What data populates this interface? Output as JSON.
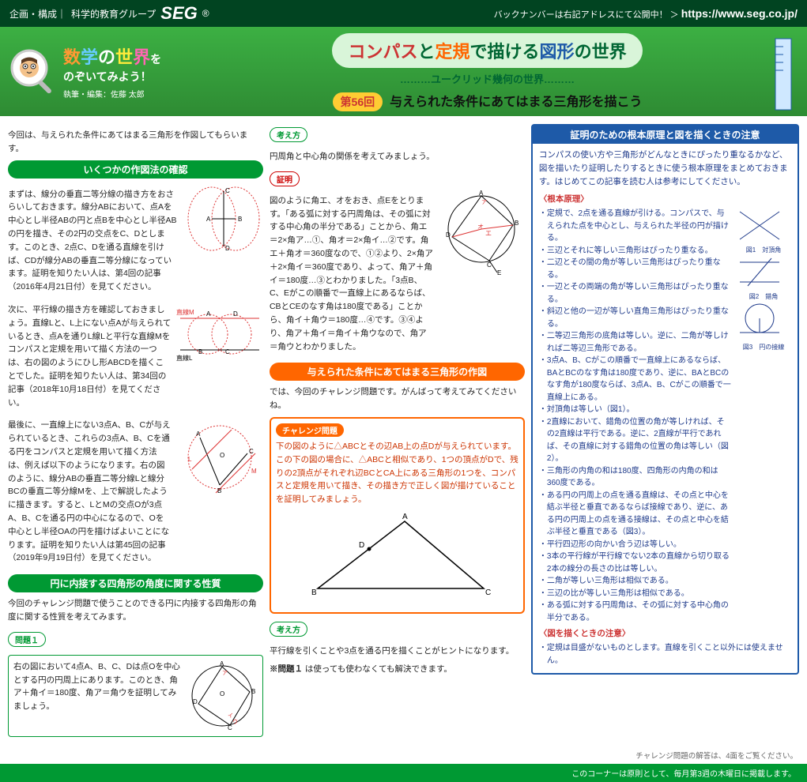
{
  "top": {
    "org": "科学的教育グループ",
    "logo": "SEG",
    "backnumber": "バックナンバーは右記アドレスにて公開中！ ＞",
    "url": "https://www.seg.co.jp/"
  },
  "header": {
    "main_title_parts": [
      "数",
      "学",
      "の",
      "世",
      "界",
      "を"
    ],
    "subtitle": "のぞいてみよう！",
    "author": "執筆・編集：佐藤 太郎",
    "compass_parts": [
      "コンパス",
      "と",
      "定規",
      "で描ける",
      "図形",
      "の",
      "世界"
    ],
    "euclid": "………ユークリッド幾何の世界………",
    "issue_no": "第56回",
    "issue_title": "与えられた条件にあてはまる三角形を描こう"
  },
  "col1": {
    "intro": "今回は、与えられた条件にあてはまる三角形を作図してもらいます。",
    "h1": "いくつかの作図法の確認",
    "p1": "まずは、線分の垂直二等分線の描き方をおさらいしておきます。線分ABにおいて、点Aを中心とし半径ABの円と点Bを中心とし半径ABの円を描き、その2円の交点をC、Dとします。このとき、2点C、Dを通る直線を引けば、CDが線分ABの垂直二等分線になっています。証明を知りたい人は、第4回の記事（2016年4月21日付）を見てください。",
    "p2": "次に、平行線の描き方を確認しておきましょう。直線Lと、L上にない点Aが与えられているとき、点Aを通りL線Lと平行な直線Mをコンパスと定規を用いて描く方法の一つは、右の図のようにひし形ABCDを描くことでした。証明を知りたい人は、第34回の記事（2018年10月18日付）を見てください。",
    "p3": "最後に、一直線上にない3点A、B、Cが与えられているとき、これらの3点A、B、Cを通る円をコンパスと定規を用いて描く方法は、例えば以下のようになります。右の図のように、線分ABの垂直二等分線Lと線分BCの垂直二等分線Mを、上で解説したように描きます。すると、LとMの交点Oが3点A、B、Cを通る円の中心になるので、Oを中心とし半径OAの円を描けばよいことになります。証明を知りたい人は第45回の記事（2019年9月19日付）を見てください。",
    "h2": "円に内接する四角形の角度に関する性質",
    "p4": "今回のチャレンジ問題で使うことのできる円に内接する四角形の角度に関する性質を考えてみます。",
    "prob1_label": "問題１",
    "prob1": "右の図において4点A、B、C、Dは点Oを中心とする円の円周上にあります。このとき、角ア＋角イ＝180度、角ア＝角ウを証明してみましょう。"
  },
  "col2": {
    "think_label": "考え方",
    "think": "円周角と中心角の関係を考えてみましょう。",
    "proof_label": "証明",
    "proof": "図のように角エ、オをおき、点Eをとります。「ある弧に対する円周角は、その弧に対する中心角の半分である」ことから、角エ＝2×角ア…①、角オ＝2×角イ…②です。角エ＋角オ＝360度なので、①②より、2×角ア＋2×角イ＝360度であり、よって、角ア＋角イ＝180度…③とわかりました。「3点B、C、Eがこの順番で一直線上にあるならば、CBとCEのなす角は180度である」ことから、角イ＋角ウ＝180度…④です。③④より、角ア＋角イ＝角イ＋角ウなので、角ア＝角ウとわかりました。",
    "h3": "与えられた条件にあてはまる三角形の作図",
    "p5": "では、今回のチャレンジ問題です。がんばって考えてみてくださいね。",
    "ch_label": "チャレンジ問題",
    "ch_text": "下の図のように△ABCとその辺AB上の点Dが与えられています。この下の図の場合に、△ABCと相似であり、1つの頂点がDで、残りの2頂点がそれぞれ辺BCとCA上にある三角形の1つを、コンパスと定規を用いて描き、その描き方で正しく図が描けていることを証明してみましょう。",
    "think2_label": "考え方",
    "think2": "平行線を引くことや3点を通る円を描くことがヒントになります。",
    "note_label": "※問題１",
    "note": "は使っても使わなくても解決できます。"
  },
  "col3": {
    "h4": "証明のための根本原理と図を描くときの注意",
    "intro2": "コンパスの使い方や三角形がどんなときにぴったり重なるかなど、図を描いたり証明したりするときに使う根本原理をまとめておきます。はじめてこの記事を読む人は参考にしてください。",
    "sub1": "〈根本原理〉",
    "list1": [
      "定規で、2点を通る直線が引ける。コンパスで、与えられた点を中心とし、与えられた半径の円が描ける。",
      "三辺とそれに等しい三角形はぴったり重なる。",
      "二辺とその間の角が等しい三角形はぴったり重なる。",
      "一辺とその両端の角が等しい三角形はぴったり重なる。",
      "斜辺と他の一辺が等しい直角三角形はぴったり重なる。",
      "二等辺三角形の底角は等しい。逆に、二角が等しければ二等辺三角形である。",
      "3点A、B、Cがこの順番で一直線上にあるならば、BAとBCのなす角は180度であり、逆に、BAとBCのなす角が180度ならば、3点A、B、Cがこの順番で一直線上にある。",
      "対頂角は等しい（図1）。",
      "2直線において、錯角の位置の角が等しければ、その2直線は平行である。逆に、2直線が平行であれば、その直線に対する錯角の位置の角は等しい（図2）。",
      "三角形の内角の和は180度、四角形の内角の和は360度である。",
      "ある円の円周上の点を通る直線は、その点と中心を結ぶ半径と垂直であるならば接線であり、逆に、ある円の円周上の点を通る接線は、その点と中心を結ぶ半径と垂直である（図3）。",
      "平行四辺形の向かい合う辺は等しい。",
      "3本の平行線が平行線でない2本の直線から切り取る2本の線分の長さの比は等しい。",
      "二角が等しい三角形は相似である。",
      "三辺の比が等しい三角形は相似である。",
      "ある弧に対する円周角は、その弧に対する中心角の半分である。"
    ],
    "sub2": "〈図を描くときの注意〉",
    "list2": [
      "定規は目盛がないものとします。直線を引くこと以外には使えません。"
    ],
    "fig1": "図1　対頂角",
    "fig2": "図2　錯角",
    "fig3": "図3　円の接線"
  },
  "footer": {
    "note": "チャレンジ問題の解答は、4面をご覧ください。",
    "bottom": "このコーナーは原則として、毎月第3週の木曜日に掲載します。"
  },
  "colors": {
    "green": "#009933",
    "darkgreen": "#014421",
    "orange": "#ff6600",
    "blue": "#1e5aa8",
    "red": "#cc3333"
  }
}
